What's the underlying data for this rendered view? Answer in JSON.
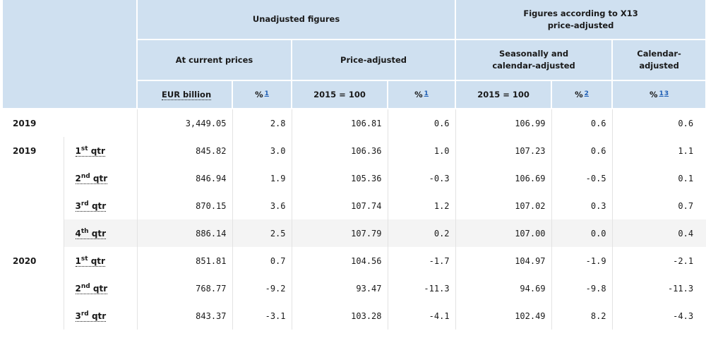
{
  "header": {
    "unadjusted": "Unadjusted figures",
    "x13_line1": "Figures according to X13",
    "x13_line2": "price-adjusted",
    "current_prices": "At current prices",
    "price_adjusted": "Price-adjusted",
    "seasonal_line1": "Seasonally and",
    "seasonal_line2": "calendar-adjusted",
    "calendar_line1": "Calendar-",
    "calendar_line2": "adjusted",
    "eur_billion": "EUR billion",
    "pct": "%",
    "index_2015": "2015 = 100",
    "fn1": "1",
    "fn2": "2",
    "fn3": "3"
  },
  "rows": [
    {
      "year": "2019",
      "ord": "",
      "sup": "",
      "qtr": "",
      "v": [
        "3,449.05",
        "2.8",
        "106.81",
        "0.6",
        "106.99",
        "0.6",
        "0.6"
      ]
    },
    {
      "year": "2019",
      "ord": "1",
      "sup": "st",
      "qtr": "qtr",
      "v": [
        "845.82",
        "3.0",
        "106.36",
        "1.0",
        "107.23",
        "0.6",
        "1.1"
      ]
    },
    {
      "year": "",
      "ord": "2",
      "sup": "nd",
      "qtr": "qtr",
      "v": [
        "846.94",
        "1.9",
        "105.36",
        "-0.3",
        "106.69",
        "-0.5",
        "0.1"
      ]
    },
    {
      "year": "",
      "ord": "3",
      "sup": "rd",
      "qtr": "qtr",
      "v": [
        "870.15",
        "3.6",
        "107.74",
        "1.2",
        "107.02",
        "0.3",
        "0.7"
      ]
    },
    {
      "year": "",
      "ord": "4",
      "sup": "th",
      "qtr": "qtr",
      "v": [
        "886.14",
        "2.5",
        "107.79",
        "0.2",
        "107.00",
        "0.0",
        "0.4"
      ]
    },
    {
      "year": "2020",
      "ord": "1",
      "sup": "st",
      "qtr": "qtr",
      "v": [
        "851.81",
        "0.7",
        "104.56",
        "-1.7",
        "104.97",
        "-1.9",
        "-2.1"
      ]
    },
    {
      "year": "",
      "ord": "2",
      "sup": "nd",
      "qtr": "qtr",
      "v": [
        "768.77",
        "-9.2",
        "93.47",
        "-11.3",
        "94.69",
        "-9.8",
        "-11.3"
      ]
    },
    {
      "year": "",
      "ord": "3",
      "sup": "rd",
      "qtr": "qtr",
      "v": [
        "843.37",
        "-3.1",
        "103.28",
        "-4.1",
        "102.49",
        "8.2",
        "-4.3"
      ]
    }
  ]
}
